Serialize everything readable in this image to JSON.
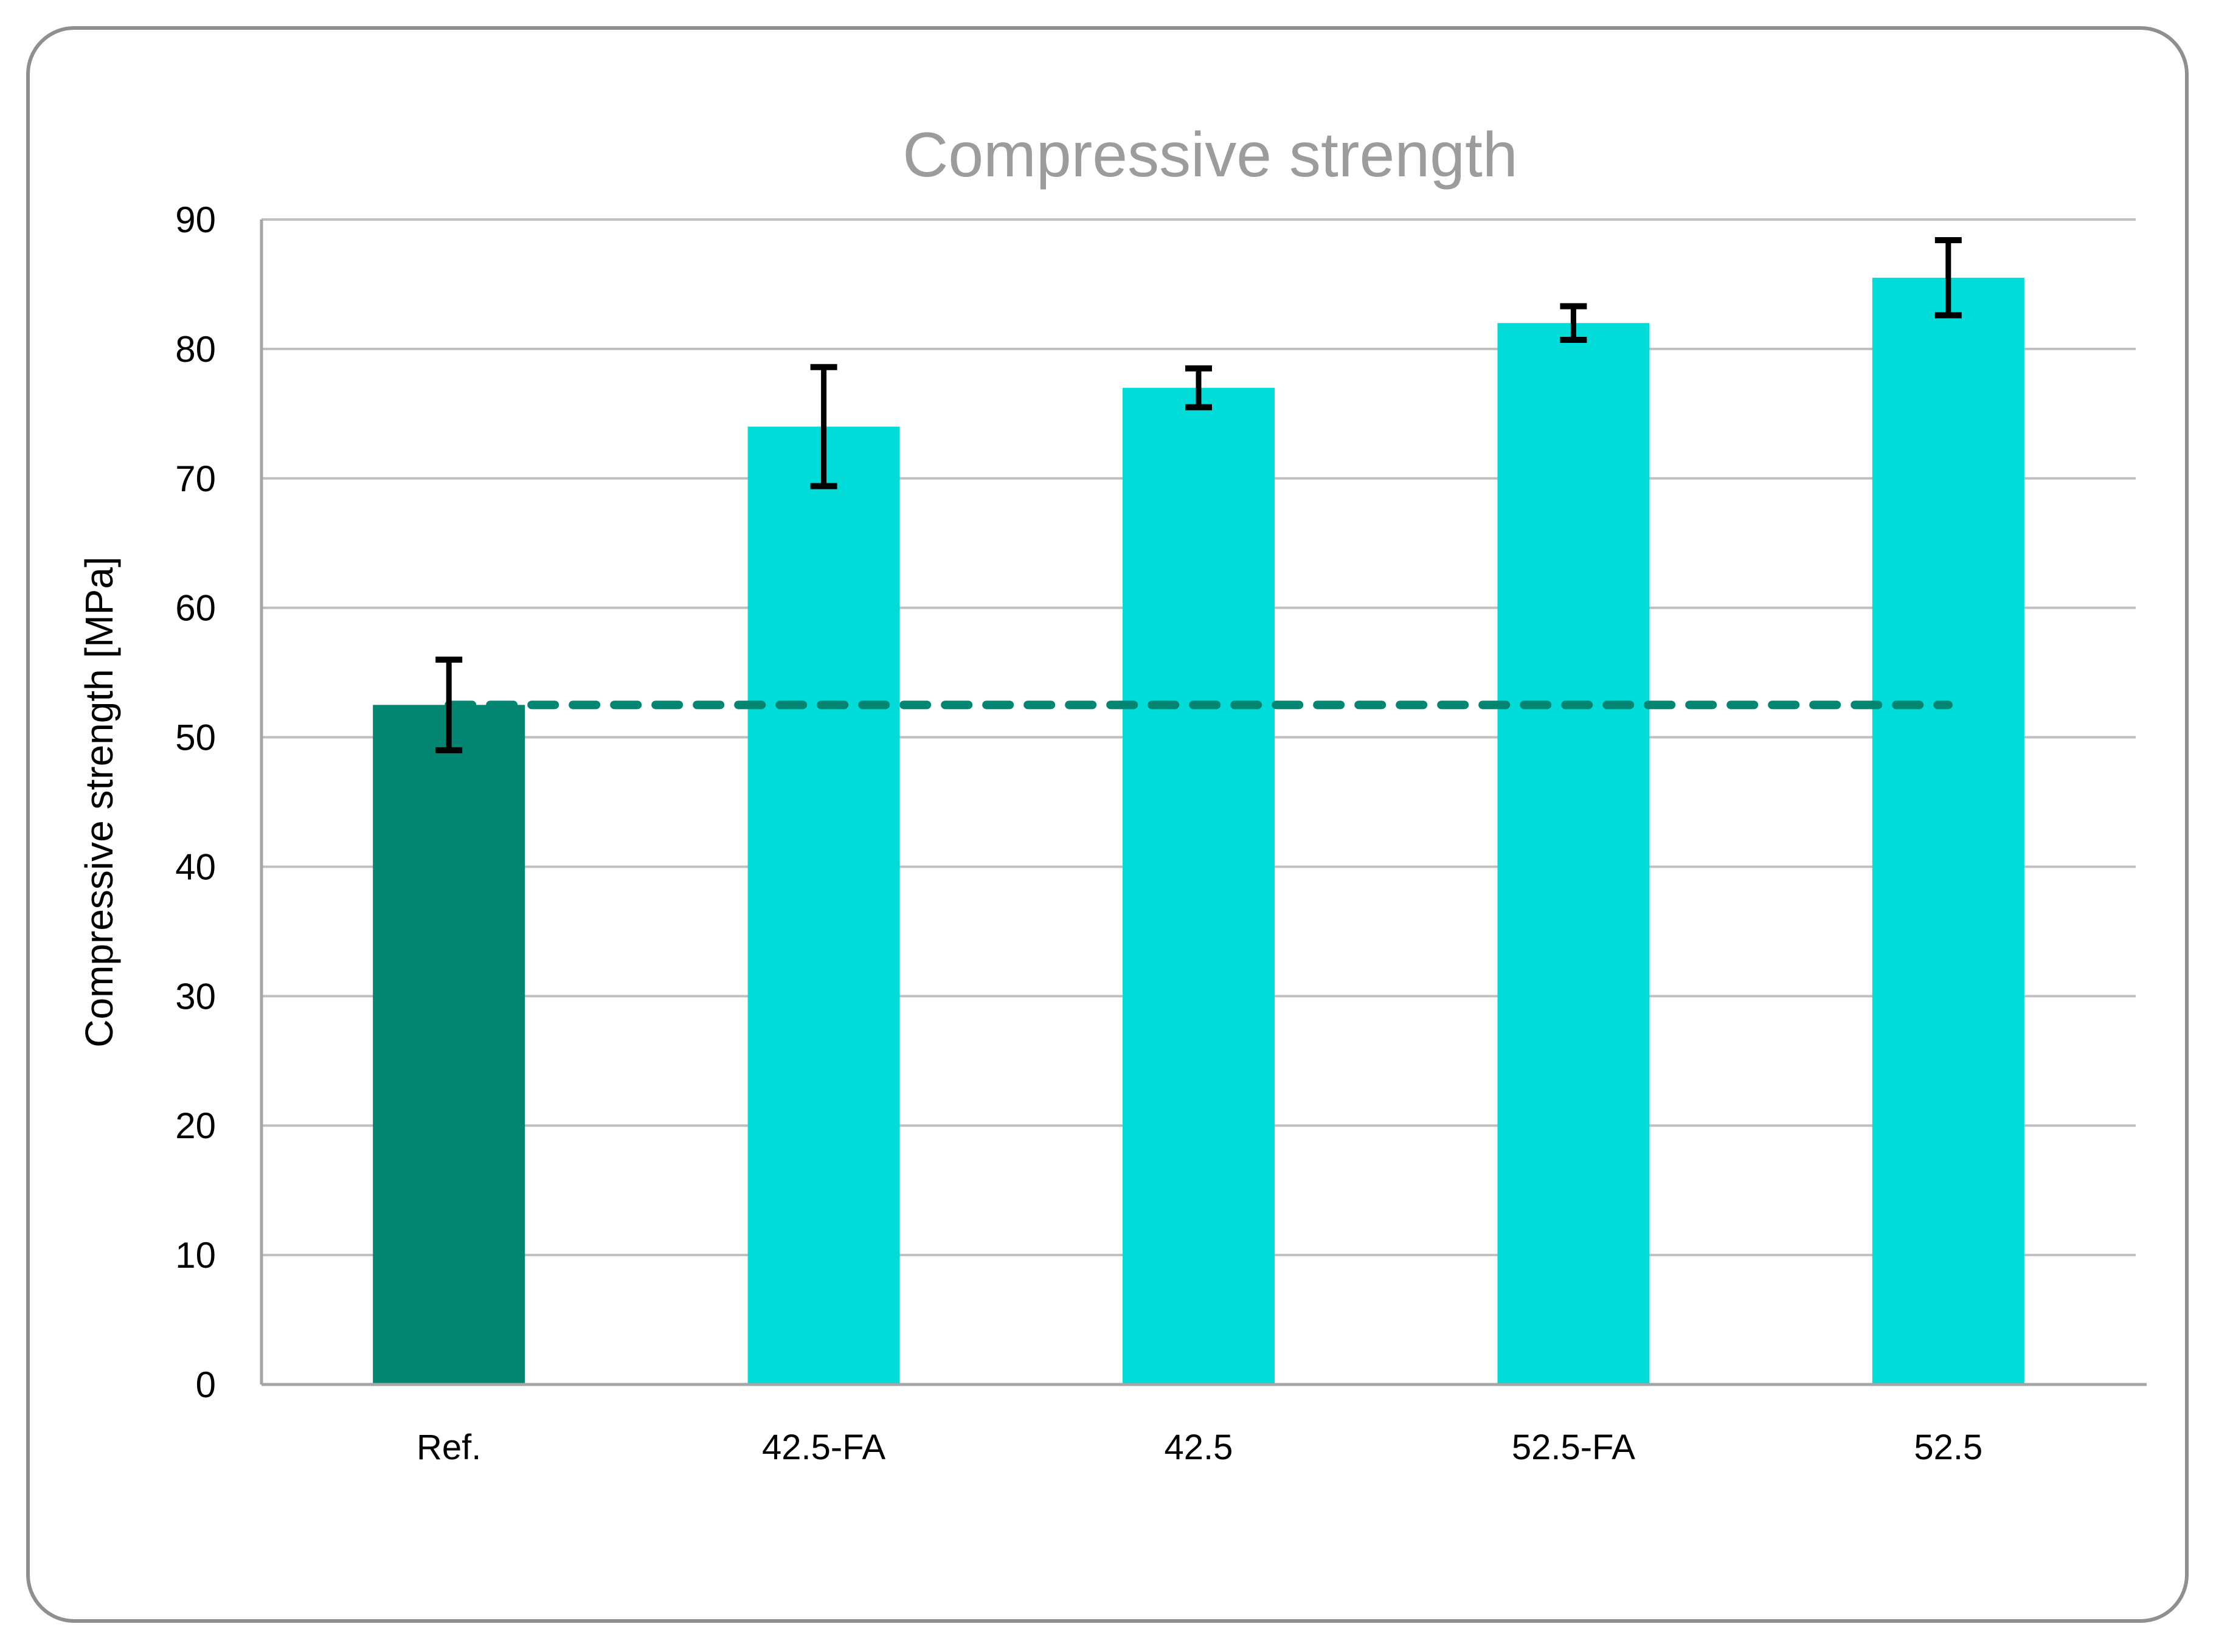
{
  "chart_data": {
    "type": "bar",
    "title": "Compressive strength",
    "xlabel": "",
    "ylabel": "Compressive strength [MPa]",
    "categories": [
      "Ref.",
      "42.5-FA",
      "42.5",
      "52.5-FA",
      "52.5"
    ],
    "values": [
      52.5,
      74,
      77,
      82,
      85.5
    ],
    "error_bars": [
      3.5,
      4.6,
      1.5,
      1.3,
      2.9
    ],
    "reference_line": {
      "value": 52.5,
      "style": "dashed",
      "note": "horizontal dashed line at Ref. bar level spanning from Ref. bar to last bar"
    },
    "ylim": [
      0,
      90
    ],
    "ytick_step": 10,
    "yticks": [
      "0",
      "10",
      "20",
      "30",
      "40",
      "50",
      "60",
      "70",
      "80",
      "90"
    ],
    "grid": "horizontal",
    "legend": "none",
    "colors": {
      "bar_ref": "#028571",
      "bar_main": "#02DCD8",
      "reference_line": "#028571",
      "error_bar": "#000000",
      "gridline": "#BFBFBF",
      "axis_line": "#A6A6A6",
      "frame_border": "#8F8F8F",
      "title_text": "#9C9C9C"
    }
  }
}
